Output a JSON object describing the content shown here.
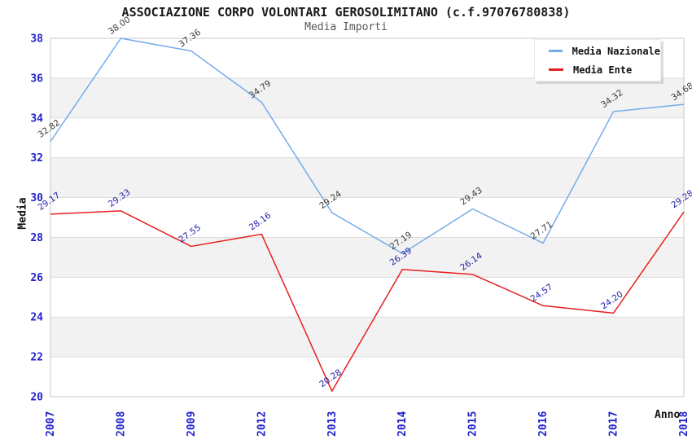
{
  "chart_data": {
    "type": "line",
    "title": "ASSOCIAZIONE CORPO VOLONTARI GEROSOLIMITANO (c.f.97076780838)",
    "subtitle": "Media Importi",
    "xlabel": "Anno",
    "ylabel": "Media",
    "categories": [
      "2007",
      "2008",
      "2009",
      "2012",
      "2013",
      "2014",
      "2015",
      "2016",
      "2017",
      "2018"
    ],
    "series": [
      {
        "name": "Media Nazionale",
        "color": "#74ACE8",
        "label_color": "#3a3a3a",
        "values": [
          32.82,
          38.0,
          37.36,
          34.79,
          29.24,
          27.19,
          29.43,
          27.71,
          34.32,
          34.68
        ]
      },
      {
        "name": "Media Ente",
        "color": "#E62020",
        "label_color": "#2222AA",
        "values": [
          29.17,
          29.33,
          27.55,
          28.16,
          20.28,
          26.39,
          26.14,
          24.57,
          24.2,
          29.28
        ]
      }
    ],
    "ylim": [
      20,
      38
    ],
    "ytick_step": 2,
    "yticks": [
      20,
      22,
      24,
      26,
      28,
      30,
      32,
      34,
      36,
      38
    ],
    "legend_position": "top-right",
    "grid": "horizontal-lines-with-alternating-bands"
  },
  "theme": {
    "band_fill": "#F2F2F2",
    "grid_color": "#DCDCDC",
    "border_color": "#C9C9C9",
    "tick_label_color": "#2222CC",
    "title_color": "#1a1a1a",
    "subtitle_color": "#555555",
    "axis_title_color": "#111111"
  }
}
